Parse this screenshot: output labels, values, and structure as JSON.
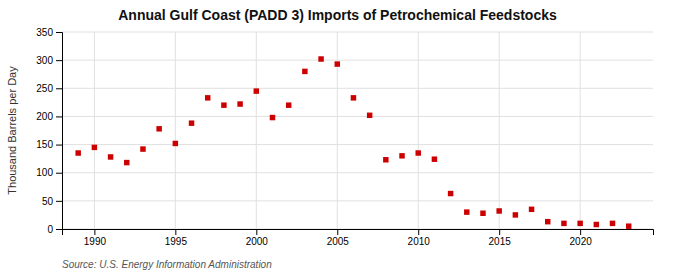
{
  "chart_data": {
    "type": "scatter",
    "title": "Annual Gulf Coast (PADD 3) Imports of Petrochemical Feedstocks",
    "ylabel": "Thousand Barrels per Day",
    "source": "Source: U.S. Energy Information Administration",
    "x": [
      1989,
      1990,
      1991,
      1992,
      1993,
      1994,
      1995,
      1996,
      1997,
      1998,
      1999,
      2000,
      2001,
      2002,
      2003,
      2004,
      2005,
      2006,
      2007,
      2008,
      2009,
      2010,
      2011,
      2012,
      2013,
      2014,
      2015,
      2016,
      2017,
      2018,
      2019,
      2020,
      2021,
      2022,
      2023
    ],
    "values": [
      135,
      145,
      128,
      118,
      142,
      178,
      152,
      188,
      233,
      220,
      222,
      245,
      198,
      220,
      280,
      302,
      293,
      233,
      202,
      123,
      130,
      135,
      124,
      63,
      30,
      28,
      32,
      25,
      35,
      13,
      10,
      10,
      8,
      10,
      5
    ],
    "color": "#cc0000",
    "marker": "square",
    "grid": true,
    "xlim": [
      1988.0,
      2024.5
    ],
    "xticks": [
      1990,
      1995,
      2000,
      2005,
      2010,
      2015,
      2020
    ],
    "ylim": [
      0,
      350
    ],
    "yticks": [
      0,
      50,
      100,
      150,
      200,
      250,
      300,
      350
    ]
  }
}
